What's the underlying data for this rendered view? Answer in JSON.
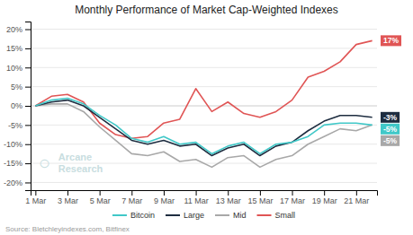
{
  "chart_data": {
    "type": "line",
    "title": "Monthly Performance of Market Cap-Weighted Indexes",
    "categories": [
      "1 Mar",
      null,
      "3 Mar",
      null,
      "5 Mar",
      null,
      "7 Mar",
      null,
      "9 Mar",
      null,
      "11 Mar",
      null,
      "13 Mar",
      null,
      "15 Mar",
      null,
      "17 Mar",
      null,
      "19 Mar",
      null,
      "21 Mar",
      null
    ],
    "series": [
      {
        "name": "Bitcoin",
        "color": "#40C8C8",
        "values": [
          0.0,
          1.5,
          2.0,
          0.5,
          -2.5,
          -5.0,
          -8.5,
          -9.5,
          -8.0,
          -10.0,
          -9.5,
          -12.5,
          -10.5,
          -9.5,
          -12.5,
          -10.0,
          -9.5,
          -8.0,
          -5.0,
          -4.5,
          -4.5,
          -5.0
        ],
        "value_labels": [
          null,
          null,
          null,
          null,
          null,
          null,
          null,
          null,
          null,
          null,
          null,
          null,
          null,
          null,
          null,
          null,
          null,
          null,
          null,
          null,
          null,
          "-5%"
        ]
      },
      {
        "name": "Large",
        "color": "#1E2D40",
        "values": [
          0.0,
          1.0,
          1.5,
          0.0,
          -3.0,
          -6.0,
          -9.0,
          -10.0,
          -9.0,
          -10.5,
          -10.0,
          -13.0,
          -11.0,
          -10.0,
          -13.0,
          -10.5,
          -9.5,
          -6.5,
          -4.0,
          -2.5,
          -2.5,
          -3.0
        ],
        "value_labels": [
          null,
          null,
          null,
          null,
          null,
          null,
          null,
          null,
          null,
          null,
          null,
          null,
          null,
          null,
          null,
          null,
          null,
          null,
          null,
          null,
          null,
          "-3%"
        ]
      },
      {
        "name": "Mid",
        "color": "#A8A8A8",
        "values": [
          0.0,
          0.5,
          0.5,
          -1.5,
          -5.5,
          -9.0,
          -12.5,
          -13.0,
          -12.0,
          -14.5,
          -14.0,
          -16.0,
          -13.5,
          -13.0,
          -16.0,
          -14.0,
          -13.0,
          -10.0,
          -8.0,
          -6.0,
          -6.5,
          -5.0
        ],
        "value_labels": [
          null,
          null,
          null,
          null,
          null,
          null,
          null,
          null,
          null,
          null,
          null,
          null,
          null,
          null,
          null,
          null,
          null,
          null,
          null,
          null,
          null,
          "-5%"
        ]
      },
      {
        "name": "Small",
        "color": "#E05555",
        "values": [
          0.0,
          2.5,
          3.0,
          1.0,
          -4.5,
          -7.5,
          -8.5,
          -8.0,
          -4.5,
          -3.5,
          4.5,
          -1.5,
          1.0,
          -2.0,
          -3.0,
          -1.5,
          1.5,
          7.5,
          9.0,
          11.5,
          16.0,
          17.0
        ],
        "value_labels": [
          null,
          null,
          null,
          null,
          null,
          null,
          null,
          null,
          null,
          null,
          null,
          null,
          null,
          null,
          null,
          null,
          null,
          null,
          null,
          null,
          null,
          "17%"
        ]
      }
    ],
    "ylim": [
      -22,
      22
    ],
    "yticks": [
      {
        "value": -20,
        "label": "-20%"
      },
      {
        "value": -15,
        "label": "-15%"
      },
      {
        "value": -10,
        "label": "-10%"
      },
      {
        "value": -5,
        "label": "-5%"
      },
      {
        "value": 0,
        "label": "0%"
      },
      {
        "value": 5,
        "label": "5%"
      },
      {
        "value": 10,
        "label": "10%"
      },
      {
        "value": 15,
        "label": "15%"
      },
      {
        "value": 20,
        "label": "20%"
      }
    ],
    "grid": true,
    "legend": "bottom",
    "annotations": [
      "○",
      "Arcane\nResearch",
      "Source: Bletchleyindexes.com, Bitfinex"
    ]
  }
}
